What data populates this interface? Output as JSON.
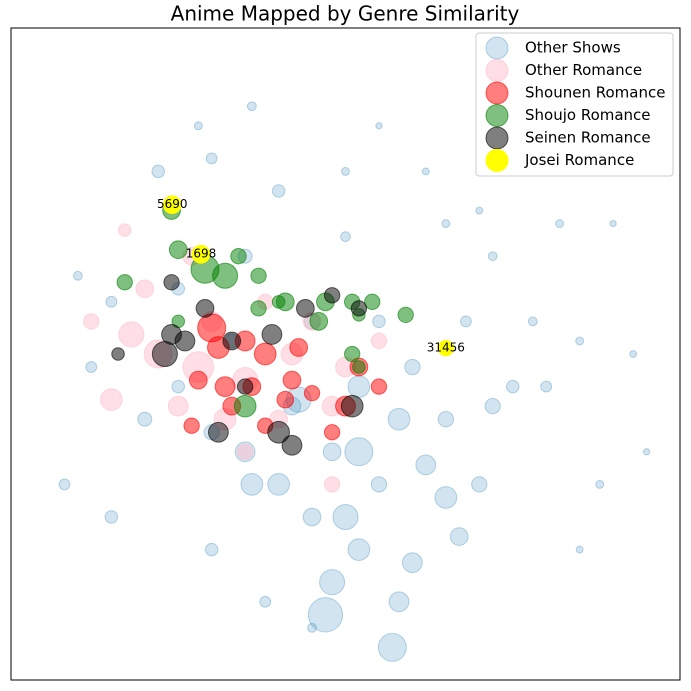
{
  "chart_data": {
    "type": "scatter",
    "title": "Anime Mapped by Genre Similarity",
    "xlim": [
      0,
      100
    ],
    "ylim": [
      0,
      100
    ],
    "legend": "upper right",
    "series": [
      {
        "name": "Other Shows",
        "color": "#1f77b4",
        "opacity": 0.2,
        "x": [
          57,
          48,
          52,
          45,
          60,
          67,
          40,
          55,
          62,
          70,
          35,
          48,
          58,
          65,
          72,
          42,
          52,
          60,
          75,
          80,
          30,
          25,
          20,
          8,
          15,
          12,
          33,
          45,
          55,
          68,
          78,
          85,
          93,
          72,
          82,
          65,
          50,
          40,
          30,
          22,
          35,
          50,
          62,
          25,
          15,
          10,
          28,
          36,
          55,
          70,
          90,
          95,
          88,
          85,
          30,
          38,
          45,
          50,
          65,
          58,
          52,
          47,
          43,
          36
        ],
        "y": [
          5,
          15,
          20,
          25,
          18,
          22,
          30,
          30,
          33,
          30,
          35,
          35,
          40,
          40,
          42,
          42,
          45,
          48,
          45,
          45,
          38,
          45,
          40,
          30,
          25,
          48,
          52,
          55,
          55,
          55,
          55,
          52,
          50,
          65,
          70,
          70,
          68,
          75,
          80,
          78,
          65,
          78,
          78,
          60,
          58,
          62,
          85,
          88,
          85,
          72,
          70,
          35,
          30,
          20,
          20,
          12,
          8,
          25,
          28,
          12,
          35,
          10,
          43,
          30
        ],
        "sizes": [
          100,
          80,
          60,
          40,
          50,
          40,
          60,
          30,
          50,
          30,
          50,
          40,
          60,
          30,
          30,
          40,
          60,
          30,
          20,
          15,
          30,
          20,
          25,
          15,
          20,
          15,
          25,
          30,
          20,
          15,
          10,
          8,
          6,
          10,
          8,
          8,
          12,
          20,
          15,
          20,
          25,
          8,
          6,
          20,
          15,
          10,
          8,
          10,
          5,
          6,
          5,
          5,
          8,
          6,
          20,
          15,
          10,
          80,
          60,
          50,
          100,
          150,
          80,
          60
        ]
      },
      {
        "name": "Other Romance",
        "color": "pink",
        "opacity": 0.5,
        "x": [
          18,
          22,
          28,
          35,
          42,
          50,
          15,
          25,
          32,
          40,
          48,
          20,
          30,
          38,
          45,
          55,
          12,
          27,
          17,
          48,
          35
        ],
        "y": [
          53,
          50,
          48,
          46,
          50,
          48,
          43,
          42,
          40,
          40,
          42,
          60,
          55,
          58,
          55,
          52,
          55,
          65,
          69,
          30,
          35
        ],
        "sizes": [
          80,
          100,
          120,
          80,
          60,
          50,
          60,
          50,
          60,
          40,
          50,
          40,
          50,
          30,
          40,
          30,
          30,
          40,
          20,
          30,
          30
        ]
      },
      {
        "name": "Shounen Romance",
        "color": "red",
        "opacity": 0.5,
        "x": [
          30,
          31,
          35,
          38,
          43,
          28,
          32,
          36,
          42,
          45,
          52,
          55,
          33,
          38,
          27,
          50,
          48,
          41
        ],
        "y": [
          54,
          51,
          52,
          50,
          51,
          46,
          45,
          45,
          46,
          44,
          48,
          45,
          42,
          39,
          39,
          42,
          38,
          43
        ],
        "sizes": [
          100,
          60,
          50,
          60,
          40,
          40,
          50,
          40,
          40,
          30,
          40,
          30,
          40,
          30,
          30,
          50,
          30,
          35
        ]
      },
      {
        "name": "Shoujo Romance",
        "color": "green",
        "opacity": 0.5,
        "x": [
          25,
          29,
          32,
          34,
          37,
          40,
          47,
          51,
          52,
          54,
          59,
          46,
          51,
          52,
          35,
          41,
          17,
          25,
          24,
          37
        ],
        "y": [
          66,
          63,
          62,
          65,
          62,
          58,
          58,
          58,
          56,
          58,
          56,
          55,
          50,
          48,
          42,
          58,
          61,
          55,
          72,
          57
        ],
        "sizes": [
          40,
          100,
          80,
          30,
          30,
          20,
          40,
          30,
          20,
          30,
          30,
          40,
          30,
          20,
          60,
          40,
          30,
          20,
          40,
          30
        ]
      },
      {
        "name": "Seinen Romance",
        "color": "black",
        "opacity": 0.5,
        "x": [
          23,
          24,
          29,
          33,
          39,
          44,
          52,
          51,
          40,
          31,
          42,
          48,
          26,
          16,
          35,
          24
        ],
        "y": [
          50,
          53,
          57,
          52,
          53,
          57,
          57,
          42,
          38,
          38,
          36,
          59,
          52,
          50,
          45,
          61
        ],
        "sizes": [
          80,
          50,
          40,
          40,
          50,
          40,
          30,
          60,
          60,
          50,
          50,
          30,
          50,
          20,
          30,
          30
        ]
      },
      {
        "name": "Josei Romance",
        "color": "yellow",
        "opacity": 1,
        "x": [
          24.1,
          28.4,
          65.0
        ],
        "y": [
          72.9,
          65.3,
          50.9
        ],
        "sizes": [
          40,
          40,
          30
        ],
        "labels": [
          "5690",
          "1698",
          "31456"
        ]
      }
    ]
  }
}
